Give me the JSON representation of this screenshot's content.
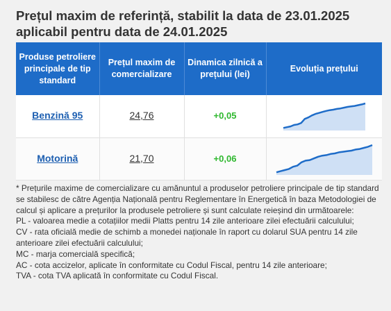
{
  "title": {
    "line1": "Prețul maxim de referință, stabilit la data de 23.01.2025",
    "line2": "aplicabil pentru data de 24.01.2025"
  },
  "table": {
    "headers": [
      "Produse petroliere principale de tip standard",
      "Prețul maxim de comercializare",
      "Dinamica zilnică a prețului (lei)",
      "Evoluția prețului"
    ],
    "rows": [
      {
        "product": "Benzină 95",
        "price": "24,76",
        "change": "+0,05",
        "trend": [
          0.02,
          0.05,
          0.08,
          0.14,
          0.16,
          0.22,
          0.38,
          0.44,
          0.52,
          0.58,
          0.62,
          0.66,
          0.7,
          0.73,
          0.75,
          0.78,
          0.8,
          0.83,
          0.86,
          0.88,
          0.9,
          0.93,
          0.96,
          1.0
        ]
      },
      {
        "product": "Motorină",
        "price": "21,70",
        "change": "+0,06",
        "trend": [
          0.02,
          0.06,
          0.1,
          0.14,
          0.22,
          0.26,
          0.38,
          0.44,
          0.46,
          0.52,
          0.58,
          0.62,
          0.64,
          0.68,
          0.7,
          0.74,
          0.76,
          0.78,
          0.8,
          0.84,
          0.86,
          0.9,
          0.94,
          1.0
        ]
      }
    ]
  },
  "colors": {
    "header_bg": "#1e6cc8",
    "link": "#1d5fb1",
    "positive": "#2eb82e",
    "spark_line": "#1e6cc8",
    "spark_fill": "#cfe0f5"
  },
  "notes": [
    "* Prețurile maxime de comercializare cu amănuntul a produselor petroliere principale de tip standard se stabilesc de către Agenția Națională pentru Reglementare în Energetică în baza Metodologiei de calcul și aplicare a prețurilor la produsele petroliere și sunt calculate reieșind din următoarele:",
    "PL - valoarea medie a cotațiilor medii Platts pentru 14 zile anterioare zilei efectuării calculului;",
    "CV - rata oficială medie de schimb a monedei naționale în raport cu dolarul SUA pentru 14 zile anterioare zilei efectuării calculului;",
    "MC - marja comercială specifică;",
    "AC - cota accizelor, aplicate în conformitate cu Codul Fiscal, pentru 14 zile anterioare;",
    "TVA - cota TVA aplicată în conformitate cu Codul Fiscal."
  ]
}
